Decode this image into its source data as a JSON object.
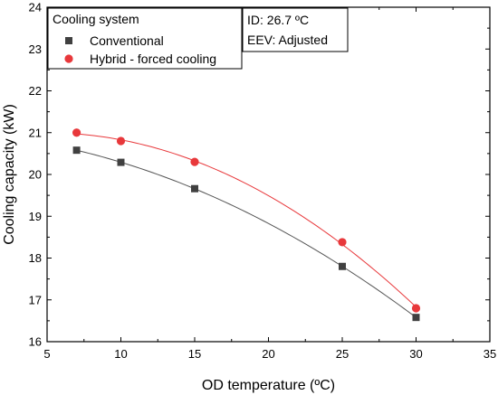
{
  "chart_data": {
    "type": "scatter",
    "xlabel": "OD temperature (ºC)",
    "ylabel": "Cooling capacity (kW)",
    "xlim": [
      5,
      35
    ],
    "ylim": [
      16,
      24
    ],
    "xticks": [
      "5",
      "10",
      "15",
      "20",
      "25",
      "30",
      "35"
    ],
    "yticks": [
      "16",
      "17",
      "18",
      "19",
      "20",
      "21",
      "22",
      "23",
      "24"
    ],
    "grid": false,
    "legend": {
      "title": "Cooling system",
      "placement": "top-left"
    },
    "annotation": {
      "line1": "ID: 26.7 ºC",
      "line2": "EEV: Adjusted",
      "placement": "top-center"
    },
    "series": [
      {
        "name": "Conventional",
        "marker": "square",
        "color": "#404040",
        "fit_color": "#555555",
        "x": [
          7,
          10,
          15,
          25,
          30
        ],
        "y": [
          20.58,
          20.29,
          19.66,
          17.8,
          16.58
        ]
      },
      {
        "name": "Hybrid - forced cooling",
        "marker": "circle",
        "color": "#e8383b",
        "fit_color": "#e8383b",
        "x": [
          7,
          10,
          15,
          25,
          30
        ],
        "y": [
          21.0,
          20.8,
          20.3,
          18.38,
          16.8
        ]
      }
    ]
  }
}
